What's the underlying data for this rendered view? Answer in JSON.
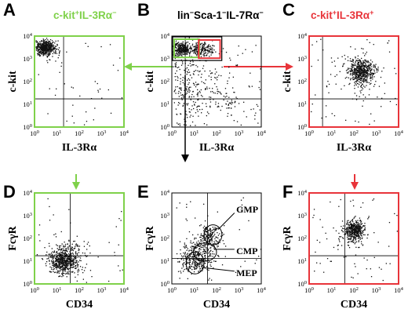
{
  "figure": {
    "colors": {
      "green": "#7fd14a",
      "red": "#e8343a",
      "black": "#000000"
    },
    "panels": [
      {
        "letter": "A",
        "title_html": [
          {
            "t": "c-kit"
          },
          {
            "t": "+",
            "sup": true
          },
          {
            "t": "IL-3Rα"
          },
          {
            "t": "−",
            "sup": true
          }
        ],
        "title_color": "green",
        "border": "green",
        "xlabel": "IL-3Rα",
        "ylabel": "c-kit"
      },
      {
        "letter": "B",
        "title_html": [
          {
            "t": "lin"
          },
          {
            "t": "−",
            "sup": true
          },
          {
            "t": "Sca-1"
          },
          {
            "t": "−",
            "sup": true
          },
          {
            "t": "IL-7Rα"
          },
          {
            "t": "−",
            "sup": true
          }
        ],
        "title_color": "black",
        "border": "black",
        "xlabel": "IL-3Rα",
        "ylabel": "c-kit"
      },
      {
        "letter": "C",
        "title_html": [
          {
            "t": "c-kit"
          },
          {
            "t": "+",
            "sup": true
          },
          {
            "t": "IL-3Rα"
          },
          {
            "t": "+",
            "sup": true
          }
        ],
        "title_color": "red",
        "border": "red",
        "xlabel": "IL-3Rα",
        "ylabel": "c-kit"
      },
      {
        "letter": "D",
        "border": "green",
        "xlabel": "CD34",
        "ylabel": "FcγR"
      },
      {
        "letter": "E",
        "border": "black",
        "xlabel": "CD34",
        "ylabel": "FcγR",
        "populations": [
          "GMP",
          "CMP",
          "MEP"
        ]
      },
      {
        "letter": "F",
        "border": "red",
        "xlabel": "CD34",
        "ylabel": "FcγR"
      }
    ],
    "axis_ticks": [
      "10",
      "10",
      "10",
      "10",
      "10"
    ],
    "axis_exponents": [
      "0",
      "1",
      "2",
      "3",
      "4"
    ]
  }
}
